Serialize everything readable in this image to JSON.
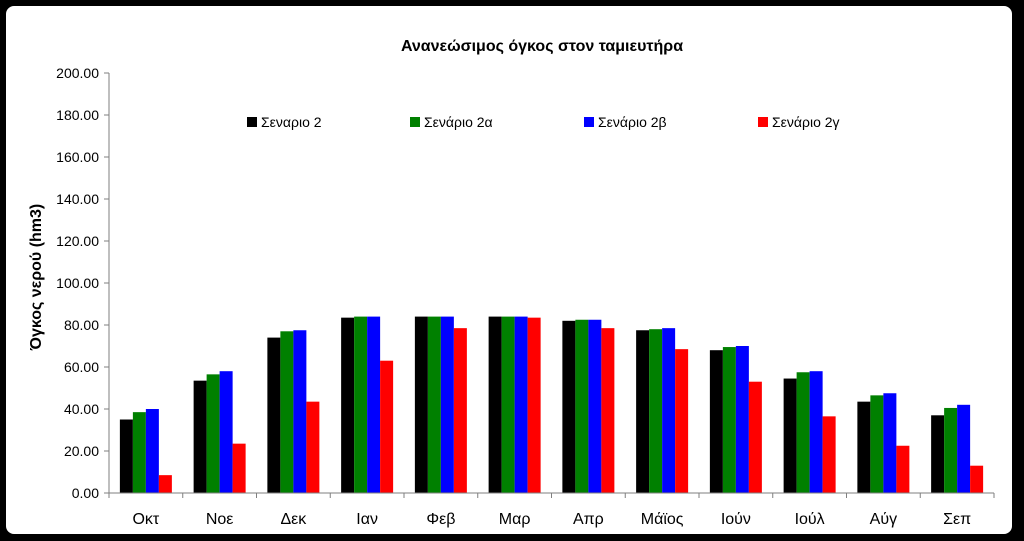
{
  "chart_data": {
    "type": "bar",
    "title": "Ανανεώσιμος όγκος στον  ταμιευτήρα",
    "xlabel": "",
    "ylabel": "Όγκος νερού (hm3)",
    "ylim": [
      0,
      200
    ],
    "ytick_step": 20,
    "ytick_labels": [
      "0.00",
      "20.00",
      "40.00",
      "60.00",
      "80.00",
      "100.00",
      "120.00",
      "140.00",
      "160.00",
      "180.00",
      "200.00"
    ],
    "grid": false,
    "legend_position": "top",
    "categories": [
      "Οκτ",
      "Νοε",
      "Δεκ",
      "Ιαν",
      "Φεβ",
      "Μαρ",
      "Απρ",
      "Μάϊος",
      "Ιούν",
      "Ιούλ",
      "Αύγ",
      "Σεπ"
    ],
    "series": [
      {
        "name": "Σεναριο 2",
        "color": "#000000",
        "values": [
          35.0,
          53.5,
          74.0,
          83.5,
          84.0,
          84.0,
          82.0,
          77.5,
          68.0,
          54.5,
          43.5,
          37.0
        ]
      },
      {
        "name": "Σενάριο 2α",
        "color": "#008000",
        "values": [
          38.5,
          56.5,
          77.0,
          84.0,
          84.0,
          84.0,
          82.5,
          78.0,
          69.5,
          57.5,
          46.5,
          40.5
        ]
      },
      {
        "name": "Σενάριο 2β",
        "color": "#0000FF",
        "values": [
          40.0,
          58.0,
          77.5,
          84.0,
          84.0,
          84.0,
          82.5,
          78.5,
          70.0,
          58.0,
          47.5,
          42.0
        ]
      },
      {
        "name": "Σενάριο 2γ",
        "color": "#FF0000",
        "values": [
          8.5,
          23.5,
          43.5,
          63.0,
          78.5,
          83.5,
          78.5,
          68.5,
          53.0,
          36.5,
          22.5,
          13.0
        ]
      }
    ]
  }
}
